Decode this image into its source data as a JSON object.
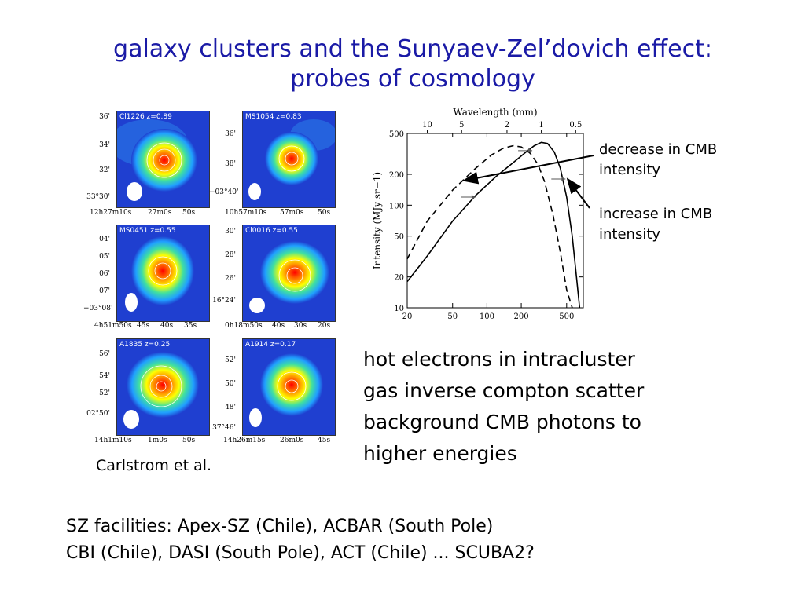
{
  "title": {
    "line1": "galaxy clusters and the Sunyaev-Zel’dovich effect:",
    "line2": "probes of cosmology"
  },
  "sz_maps": {
    "credit": "Carlstrom et al.",
    "panels": [
      {
        "label": "Cl1226  z=0.89",
        "yticks": [
          "36'",
          "34'",
          "32'",
          "33°30'"
        ],
        "xticks": [
          "12h27m10s",
          "27m0s",
          "50s"
        ]
      },
      {
        "label": "MS1054  z=0.83",
        "yticks": [
          "36'",
          "38'",
          "−03°40'"
        ],
        "xticks": [
          "10h57m10s",
          "57m0s",
          "50s"
        ]
      },
      {
        "label": "MS0451  z=0.55",
        "yticks": [
          "04'",
          "05'",
          "06'",
          "07'",
          "−03°08'"
        ],
        "xticks": [
          "4h51m50s",
          "45s",
          "40s",
          "35s"
        ]
      },
      {
        "label": "Cl0016  z=0.55",
        "yticks": [
          "30'",
          "28'",
          "26'",
          "16°24'"
        ],
        "xticks": [
          "0h18m50s",
          "40s",
          "30s",
          "20s"
        ]
      },
      {
        "label": "A1835  z=0.25",
        "yticks": [
          "56'",
          "54'",
          "52'",
          "02°50'"
        ],
        "xticks": [
          "14h1m10s",
          "1m0s",
          "50s"
        ]
      },
      {
        "label": "A1914  z=0.17",
        "yticks": [
          "52'",
          "50'",
          "48'",
          "37°46'"
        ],
        "xticks": [
          "14h26m15s",
          "26m0s",
          "45s"
        ]
      }
    ]
  },
  "chart_data": {
    "type": "line",
    "xscale": "log",
    "yscale": "log",
    "top_axis_label": "Wavelength (mm)",
    "top_ticks": [
      "10",
      "5",
      "2",
      "1",
      "0.5"
    ],
    "top_tick_values_mm": [
      10,
      5,
      2,
      1,
      0.5
    ],
    "ylabel": "Intensity (MJy sr−1)",
    "xticks": [
      "20",
      "50",
      "100",
      "200",
      "500"
    ],
    "xtick_values": [
      20,
      50,
      100,
      200,
      500
    ],
    "yticks": [
      "10",
      "20",
      "50",
      "100",
      "200",
      "500"
    ],
    "ytick_values": [
      10,
      20,
      50,
      100,
      200,
      500
    ],
    "xlim": [
      20,
      700
    ],
    "ylim": [
      10,
      500
    ],
    "series": [
      {
        "style": "dashed",
        "x": [
          20,
          30,
          50,
          80,
          110,
          140,
          170,
          200,
          240,
          280,
          320,
          380,
          440,
          500,
          560
        ],
        "y": [
          30,
          70,
          140,
          230,
          310,
          360,
          380,
          370,
          320,
          250,
          170,
          80,
          35,
          15,
          10
        ]
      },
      {
        "style": "solid",
        "x": [
          20,
          30,
          50,
          80,
          120,
          170,
          220,
          260,
          300,
          340,
          390,
          440,
          500,
          560,
          610,
          650
        ],
        "y": [
          18,
          32,
          70,
          125,
          190,
          260,
          330,
          380,
          410,
          400,
          330,
          230,
          120,
          50,
          20,
          10
        ]
      }
    ]
  },
  "annotations": {
    "decrease": {
      "line1": "decrease in CMB",
      "line2": "intensity"
    },
    "increase": {
      "line1": "increase in CMB",
      "line2": "intensity"
    }
  },
  "mechanism": {
    "lines": [
      "hot electrons in intracluster",
      "gas inverse compton scatter",
      "background CMB photons to",
      "higher energies"
    ]
  },
  "facilities": {
    "line1": "SZ facilities: Apex-SZ (Chile), ACBAR (South Pole)",
    "line2": "CBI (Chile), DASI (South Pole), ACT (Chile) ... SCUBA2?"
  },
  "colors": {
    "title": "#1a1aa6",
    "map_background": "#1f3fd0"
  }
}
